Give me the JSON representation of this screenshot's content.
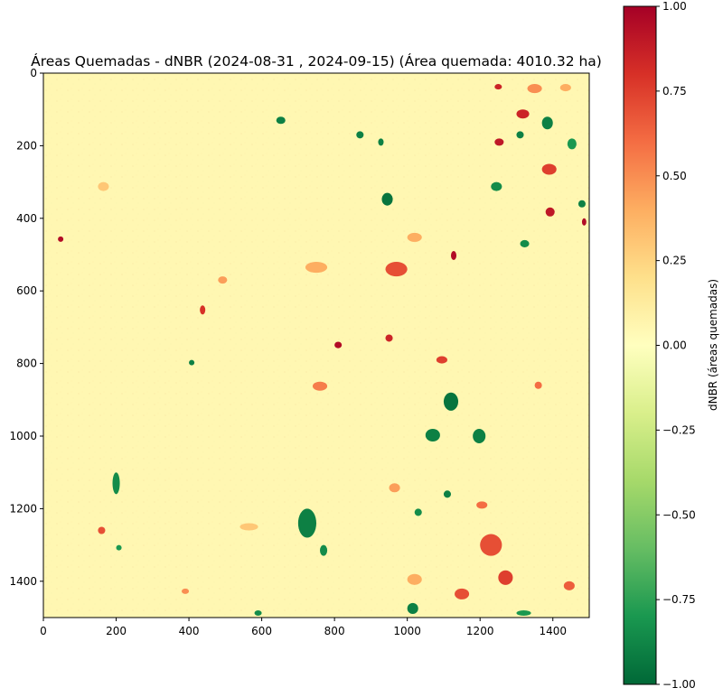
{
  "chart_data": {
    "type": "heatmap",
    "title": "Áreas Quemadas - dNBR (2024-08-31 , 2024-09-15) (Área quemada: 4010.32 ha)",
    "xlabel": "",
    "ylabel": "",
    "x_ticks": [
      0,
      200,
      400,
      600,
      800,
      1000,
      1200,
      1400
    ],
    "y_ticks": [
      0,
      200,
      400,
      600,
      800,
      1000,
      1200,
      1400
    ],
    "xlim": [
      0,
      1500
    ],
    "ylim": [
      1500,
      0
    ],
    "colorbar": {
      "label": "dNBR (áreas quemadas)",
      "range": [
        -1.0,
        1.0
      ],
      "ticks": [
        "1.00",
        "0.75",
        "0.50",
        "0.25",
        "0.00",
        "−0.25",
        "−0.50",
        "−0.75",
        "−1.00"
      ],
      "tick_values": [
        1.0,
        0.75,
        0.5,
        0.25,
        0.0,
        -0.25,
        -0.5,
        -0.75,
        -1.0
      ],
      "colormap": [
        "#006837",
        "#1a9850",
        "#66bd63",
        "#a6d96a",
        "#d9ef8b",
        "#ffffbf",
        "#fee08b",
        "#fdae61",
        "#f46d43",
        "#d73027",
        "#a50026"
      ]
    },
    "background_value": 0.05,
    "patches": [
      {
        "x": 930,
        "y": 330,
        "w": 30,
        "h": 35,
        "value": -0.95
      },
      {
        "x": 1100,
        "y": 880,
        "w": 40,
        "h": 50,
        "value": -0.95
      },
      {
        "x": 1180,
        "y": 980,
        "w": 35,
        "h": 40,
        "value": -0.9
      },
      {
        "x": 1050,
        "y": 980,
        "w": 40,
        "h": 35,
        "value": -0.9
      },
      {
        "x": 700,
        "y": 1200,
        "w": 50,
        "h": 80,
        "value": -0.9
      },
      {
        "x": 760,
        "y": 1300,
        "w": 20,
        "h": 30,
        "value": -0.85
      },
      {
        "x": 640,
        "y": 120,
        "w": 25,
        "h": 20,
        "value": -0.9
      },
      {
        "x": 860,
        "y": 160,
        "w": 20,
        "h": 20,
        "value": -0.9
      },
      {
        "x": 920,
        "y": 180,
        "w": 15,
        "h": 20,
        "value": -0.9
      },
      {
        "x": 1370,
        "y": 120,
        "w": 30,
        "h": 35,
        "value": -0.9
      },
      {
        "x": 1300,
        "y": 160,
        "w": 20,
        "h": 20,
        "value": -0.9
      },
      {
        "x": 1230,
        "y": 300,
        "w": 30,
        "h": 25,
        "value": -0.85
      },
      {
        "x": 1470,
        "y": 350,
        "w": 20,
        "h": 20,
        "value": -0.9
      },
      {
        "x": 190,
        "y": 1100,
        "w": 20,
        "h": 60,
        "value": -0.85
      },
      {
        "x": 1000,
        "y": 1460,
        "w": 30,
        "h": 30,
        "value": -0.9
      },
      {
        "x": 1100,
        "y": 1150,
        "w": 20,
        "h": 20,
        "value": -0.9
      },
      {
        "x": 1020,
        "y": 1200,
        "w": 20,
        "h": 20,
        "value": -0.85
      },
      {
        "x": 400,
        "y": 790,
        "w": 15,
        "h": 15,
        "value": -0.9
      },
      {
        "x": 1310,
        "y": 460,
        "w": 25,
        "h": 20,
        "value": -0.85
      },
      {
        "x": 1440,
        "y": 180,
        "w": 25,
        "h": 30,
        "value": -0.8
      },
      {
        "x": 1120,
        "y": 490,
        "w": 15,
        "h": 25,
        "value": 0.95
      },
      {
        "x": 800,
        "y": 740,
        "w": 20,
        "h": 18,
        "value": 0.95
      },
      {
        "x": 1240,
        "y": 180,
        "w": 25,
        "h": 20,
        "value": 0.9
      },
      {
        "x": 1300,
        "y": 100,
        "w": 35,
        "h": 25,
        "value": 0.85
      },
      {
        "x": 1370,
        "y": 250,
        "w": 40,
        "h": 30,
        "value": 0.75
      },
      {
        "x": 1380,
        "y": 370,
        "w": 25,
        "h": 25,
        "value": 0.9
      },
      {
        "x": 1480,
        "y": 400,
        "w": 12,
        "h": 20,
        "value": 0.95
      },
      {
        "x": 1240,
        "y": 30,
        "w": 20,
        "h": 15,
        "value": 0.85
      },
      {
        "x": 1420,
        "y": 30,
        "w": 30,
        "h": 20,
        "value": 0.4
      },
      {
        "x": 1330,
        "y": 30,
        "w": 40,
        "h": 25,
        "value": 0.5
      },
      {
        "x": 540,
        "y": 1240,
        "w": 50,
        "h": 20,
        "value": 0.3
      },
      {
        "x": 720,
        "y": 520,
        "w": 60,
        "h": 30,
        "value": 0.4
      },
      {
        "x": 740,
        "y": 850,
        "w": 40,
        "h": 25,
        "value": 0.55
      },
      {
        "x": 940,
        "y": 720,
        "w": 20,
        "h": 20,
        "value": 0.85
      },
      {
        "x": 1080,
        "y": 780,
        "w": 30,
        "h": 20,
        "value": 0.75
      },
      {
        "x": 1200,
        "y": 1270,
        "w": 60,
        "h": 60,
        "value": 0.7
      },
      {
        "x": 1250,
        "y": 1370,
        "w": 40,
        "h": 40,
        "value": 0.75
      },
      {
        "x": 1130,
        "y": 1420,
        "w": 40,
        "h": 30,
        "value": 0.7
      },
      {
        "x": 1430,
        "y": 1400,
        "w": 30,
        "h": 25,
        "value": 0.65
      },
      {
        "x": 1190,
        "y": 1180,
        "w": 30,
        "h": 20,
        "value": 0.6
      },
      {
        "x": 40,
        "y": 450,
        "w": 15,
        "h": 15,
        "value": 0.95
      },
      {
        "x": 430,
        "y": 640,
        "w": 15,
        "h": 25,
        "value": 0.8
      },
      {
        "x": 480,
        "y": 560,
        "w": 25,
        "h": 20,
        "value": 0.45
      },
      {
        "x": 950,
        "y": 1130,
        "w": 30,
        "h": 25,
        "value": 0.45
      },
      {
        "x": 1000,
        "y": 1380,
        "w": 40,
        "h": 30,
        "value": 0.4
      },
      {
        "x": 380,
        "y": 1420,
        "w": 20,
        "h": 15,
        "value": 0.5
      },
      {
        "x": 150,
        "y": 1250,
        "w": 20,
        "h": 20,
        "value": 0.7
      },
      {
        "x": 940,
        "y": 520,
        "w": 60,
        "h": 40,
        "value": 0.7
      },
      {
        "x": 1000,
        "y": 440,
        "w": 40,
        "h": 25,
        "value": 0.4
      },
      {
        "x": 150,
        "y": 300,
        "w": 30,
        "h": 25,
        "value": 0.3
      },
      {
        "x": 1350,
        "y": 850,
        "w": 20,
        "h": 20,
        "value": 0.6
      },
      {
        "x": 580,
        "y": 1480,
        "w": 20,
        "h": 15,
        "value": -0.85
      },
      {
        "x": 1300,
        "y": 1480,
        "w": 40,
        "h": 15,
        "value": -0.8
      },
      {
        "x": 200,
        "y": 1300,
        "w": 15,
        "h": 15,
        "value": -0.8
      }
    ],
    "colorbar_position": "right"
  }
}
